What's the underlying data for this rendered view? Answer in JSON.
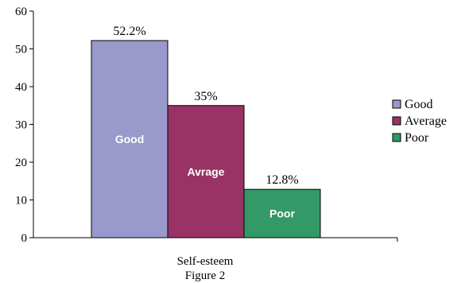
{
  "chart_data": {
    "type": "bar",
    "categories": [
      "Self-esteem"
    ],
    "xlabel": "Self-esteem",
    "caption": "Figure 2",
    "ylim": [
      0,
      60
    ],
    "yticks": [
      0,
      10,
      20,
      30,
      40,
      50,
      60
    ],
    "series": [
      {
        "name": "Good",
        "value": 52.2,
        "data_label": "52.2%",
        "bar_label": "Good",
        "color": "#9999cc"
      },
      {
        "name": "Average",
        "value": 35,
        "data_label": "35%",
        "bar_label": "Avrage",
        "color": "#993366"
      },
      {
        "name": "Poor",
        "value": 12.8,
        "data_label": "12.8%",
        "bar_label": "Poor",
        "color": "#339966"
      }
    ],
    "legend_position": "right",
    "grid": false
  }
}
